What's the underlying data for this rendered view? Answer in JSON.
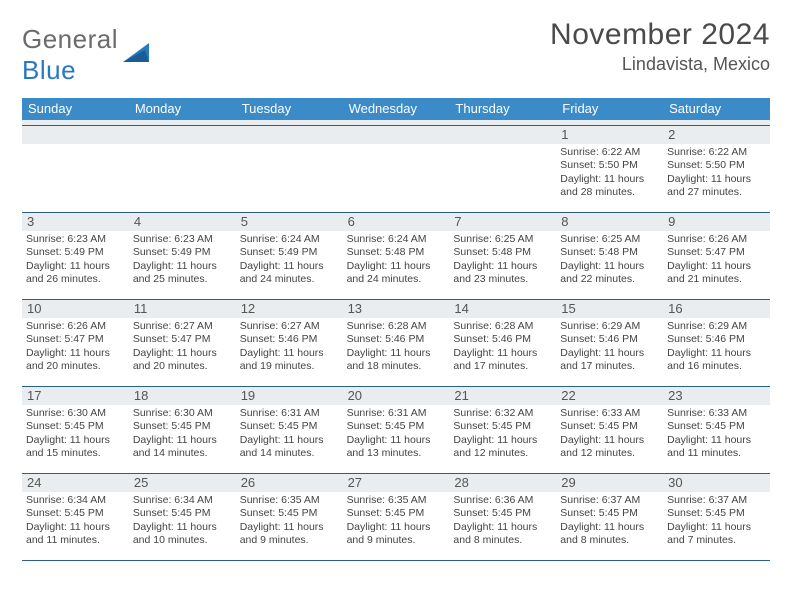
{
  "brand": {
    "name_gray": "General",
    "name_blue": "Blue"
  },
  "title": "November 2024",
  "location": "Lindavista, Mexico",
  "colors": {
    "header_bg": "#3b8bc9",
    "daynum_bg": "#e9edef",
    "rule": "#2c5f88",
    "text": "#444444",
    "logo_gray": "#6b6b6b",
    "logo_blue": "#2b78c2"
  },
  "weekdays": [
    "Sunday",
    "Monday",
    "Tuesday",
    "Wednesday",
    "Thursday",
    "Friday",
    "Saturday"
  ],
  "weeks": [
    [
      {
        "day": null
      },
      {
        "day": null
      },
      {
        "day": null
      },
      {
        "day": null
      },
      {
        "day": null
      },
      {
        "day": 1,
        "sunrise": "6:22 AM",
        "sunset": "5:50 PM",
        "daylight": "11 hours and 28 minutes."
      },
      {
        "day": 2,
        "sunrise": "6:22 AM",
        "sunset": "5:50 PM",
        "daylight": "11 hours and 27 minutes."
      }
    ],
    [
      {
        "day": 3,
        "sunrise": "6:23 AM",
        "sunset": "5:49 PM",
        "daylight": "11 hours and 26 minutes."
      },
      {
        "day": 4,
        "sunrise": "6:23 AM",
        "sunset": "5:49 PM",
        "daylight": "11 hours and 25 minutes."
      },
      {
        "day": 5,
        "sunrise": "6:24 AM",
        "sunset": "5:49 PM",
        "daylight": "11 hours and 24 minutes."
      },
      {
        "day": 6,
        "sunrise": "6:24 AM",
        "sunset": "5:48 PM",
        "daylight": "11 hours and 24 minutes."
      },
      {
        "day": 7,
        "sunrise": "6:25 AM",
        "sunset": "5:48 PM",
        "daylight": "11 hours and 23 minutes."
      },
      {
        "day": 8,
        "sunrise": "6:25 AM",
        "sunset": "5:48 PM",
        "daylight": "11 hours and 22 minutes."
      },
      {
        "day": 9,
        "sunrise": "6:26 AM",
        "sunset": "5:47 PM",
        "daylight": "11 hours and 21 minutes."
      }
    ],
    [
      {
        "day": 10,
        "sunrise": "6:26 AM",
        "sunset": "5:47 PM",
        "daylight": "11 hours and 20 minutes."
      },
      {
        "day": 11,
        "sunrise": "6:27 AM",
        "sunset": "5:47 PM",
        "daylight": "11 hours and 20 minutes."
      },
      {
        "day": 12,
        "sunrise": "6:27 AM",
        "sunset": "5:46 PM",
        "daylight": "11 hours and 19 minutes."
      },
      {
        "day": 13,
        "sunrise": "6:28 AM",
        "sunset": "5:46 PM",
        "daylight": "11 hours and 18 minutes."
      },
      {
        "day": 14,
        "sunrise": "6:28 AM",
        "sunset": "5:46 PM",
        "daylight": "11 hours and 17 minutes."
      },
      {
        "day": 15,
        "sunrise": "6:29 AM",
        "sunset": "5:46 PM",
        "daylight": "11 hours and 17 minutes."
      },
      {
        "day": 16,
        "sunrise": "6:29 AM",
        "sunset": "5:46 PM",
        "daylight": "11 hours and 16 minutes."
      }
    ],
    [
      {
        "day": 17,
        "sunrise": "6:30 AM",
        "sunset": "5:45 PM",
        "daylight": "11 hours and 15 minutes."
      },
      {
        "day": 18,
        "sunrise": "6:30 AM",
        "sunset": "5:45 PM",
        "daylight": "11 hours and 14 minutes."
      },
      {
        "day": 19,
        "sunrise": "6:31 AM",
        "sunset": "5:45 PM",
        "daylight": "11 hours and 14 minutes."
      },
      {
        "day": 20,
        "sunrise": "6:31 AM",
        "sunset": "5:45 PM",
        "daylight": "11 hours and 13 minutes."
      },
      {
        "day": 21,
        "sunrise": "6:32 AM",
        "sunset": "5:45 PM",
        "daylight": "11 hours and 12 minutes."
      },
      {
        "day": 22,
        "sunrise": "6:33 AM",
        "sunset": "5:45 PM",
        "daylight": "11 hours and 12 minutes."
      },
      {
        "day": 23,
        "sunrise": "6:33 AM",
        "sunset": "5:45 PM",
        "daylight": "11 hours and 11 minutes."
      }
    ],
    [
      {
        "day": 24,
        "sunrise": "6:34 AM",
        "sunset": "5:45 PM",
        "daylight": "11 hours and 11 minutes."
      },
      {
        "day": 25,
        "sunrise": "6:34 AM",
        "sunset": "5:45 PM",
        "daylight": "11 hours and 10 minutes."
      },
      {
        "day": 26,
        "sunrise": "6:35 AM",
        "sunset": "5:45 PM",
        "daylight": "11 hours and 9 minutes."
      },
      {
        "day": 27,
        "sunrise": "6:35 AM",
        "sunset": "5:45 PM",
        "daylight": "11 hours and 9 minutes."
      },
      {
        "day": 28,
        "sunrise": "6:36 AM",
        "sunset": "5:45 PM",
        "daylight": "11 hours and 8 minutes."
      },
      {
        "day": 29,
        "sunrise": "6:37 AM",
        "sunset": "5:45 PM",
        "daylight": "11 hours and 8 minutes."
      },
      {
        "day": 30,
        "sunrise": "6:37 AM",
        "sunset": "5:45 PM",
        "daylight": "11 hours and 7 minutes."
      }
    ]
  ],
  "labels": {
    "sunrise_prefix": "Sunrise: ",
    "sunset_prefix": "Sunset: ",
    "daylight_prefix": "Daylight: "
  }
}
